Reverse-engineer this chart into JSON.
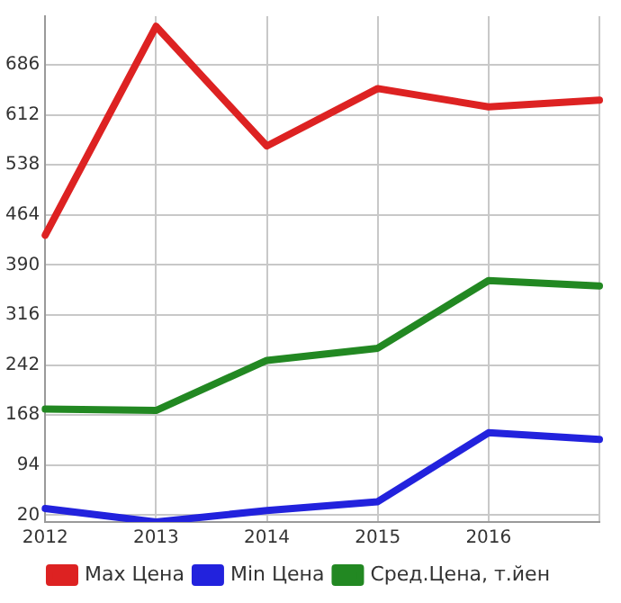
{
  "chart_data": {
    "type": "line",
    "categories": [
      "2012",
      "2013",
      "2014",
      "2015",
      "2016",
      null
    ],
    "series": [
      {
        "name": "Max Цена",
        "color": "#dd2222",
        "values": [
          434,
          743,
          566,
          651,
          624,
          634
        ]
      },
      {
        "name": "Min Цена",
        "color": "#2222dd",
        "values": [
          30,
          10,
          27,
          40,
          142,
          132
        ]
      },
      {
        "name": "Сред.Цена, т.йен",
        "color": "#228822",
        "values": [
          177,
          175,
          249,
          267,
          367,
          359
        ]
      }
    ],
    "ylim": [
      10,
      758
    ],
    "yticks": [
      20,
      94,
      168,
      242,
      316,
      390,
      464,
      538,
      612,
      686
    ],
    "grid": true,
    "legend": "bottom",
    "marker": "none",
    "line_style": "solid"
  }
}
